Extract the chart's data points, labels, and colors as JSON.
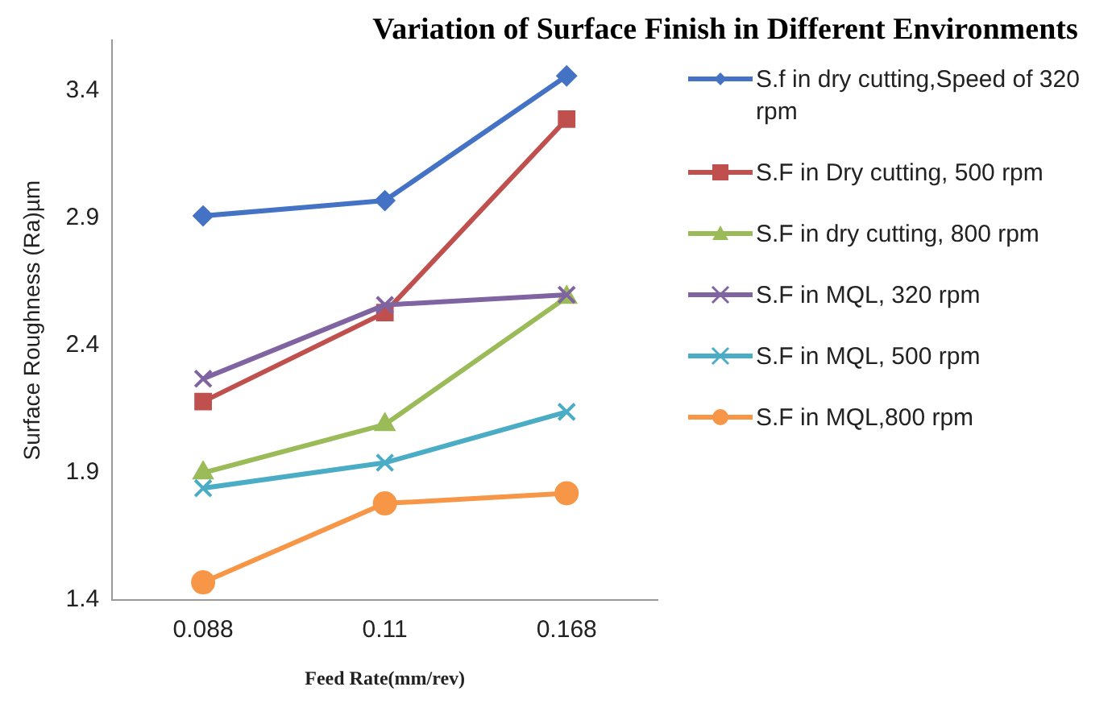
{
  "chart_data": {
    "type": "line",
    "title": "Variation of Surface Finish in Different Environments",
    "xlabel": "Feed Rate(mm/rev)",
    "ylabel": "Surface Roughness (Ra)µm",
    "categories": [
      "0.088",
      "0.11",
      "0.168"
    ],
    "ylim": [
      1.4,
      3.6
    ],
    "yticks": [
      1.4,
      1.9,
      2.4,
      2.9,
      3.4
    ],
    "grid": false,
    "legend": "right",
    "series": [
      {
        "name": "S.f in dry cutting,Speed of 320 rpm",
        "color": "#4472c4",
        "marker": "diamond",
        "values": [
          2.91,
          2.97,
          3.46
        ]
      },
      {
        "name": "S.F in Dry cutting, 500 rpm",
        "color": "#c0504d",
        "marker": "square",
        "values": [
          2.18,
          2.53,
          3.29
        ]
      },
      {
        "name": "S.F in dry cutting, 800 rpm",
        "color": "#9bbb59",
        "marker": "triangle",
        "values": [
          1.9,
          2.09,
          2.59
        ]
      },
      {
        "name": "S.F in MQL, 320 rpm",
        "color": "#8064a2",
        "marker": "cross",
        "values": [
          2.27,
          2.56,
          2.6
        ]
      },
      {
        "name": "S.F in MQL, 500 rpm",
        "color": "#4bacc6",
        "marker": "cross",
        "values": [
          1.84,
          1.94,
          2.14
        ]
      },
      {
        "name": "S.F in MQL,800 rpm",
        "color": "#f79646",
        "marker": "circle",
        "values": [
          1.47,
          1.78,
          1.82
        ]
      }
    ]
  }
}
